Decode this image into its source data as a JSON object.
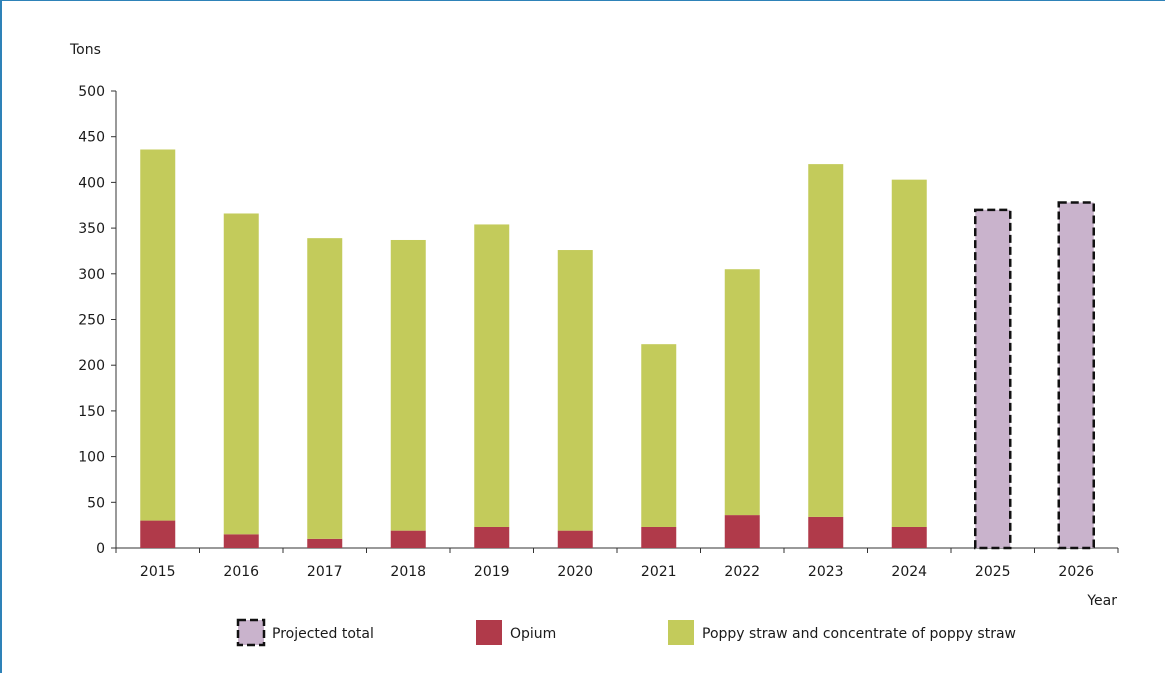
{
  "chart_data": {
    "type": "bar",
    "stacked": true,
    "title": "",
    "ylabel": "Tons",
    "xlabel": "Year",
    "ylim": [
      0,
      500
    ],
    "yticks": [
      0,
      50,
      100,
      150,
      200,
      250,
      300,
      350,
      400,
      450,
      500
    ],
    "categories": [
      "2015",
      "2016",
      "2017",
      "2018",
      "2019",
      "2020",
      "2021",
      "2022",
      "2023",
      "2024",
      "2025",
      "2026"
    ],
    "series": [
      {
        "name": "Opium",
        "color": "#b03a4a",
        "values": [
          30,
          15,
          10,
          19,
          23,
          19,
          23,
          36,
          34,
          23,
          null,
          null
        ]
      },
      {
        "name": "Poppy straw and concentrate of poppy straw",
        "color": "#c3cb5b",
        "values": [
          406,
          351,
          329,
          318,
          331,
          307,
          200,
          269,
          386,
          380,
          null,
          null
        ]
      },
      {
        "name": "Projected total",
        "color": "#c9b3cc",
        "dashed_border": true,
        "values": [
          null,
          null,
          null,
          null,
          null,
          null,
          null,
          null,
          null,
          null,
          370,
          378
        ]
      }
    ],
    "legend": {
      "placement": "bottom",
      "order": [
        "Projected total",
        "Opium",
        "Poppy straw and concentrate of poppy straw"
      ]
    },
    "grid": false
  }
}
